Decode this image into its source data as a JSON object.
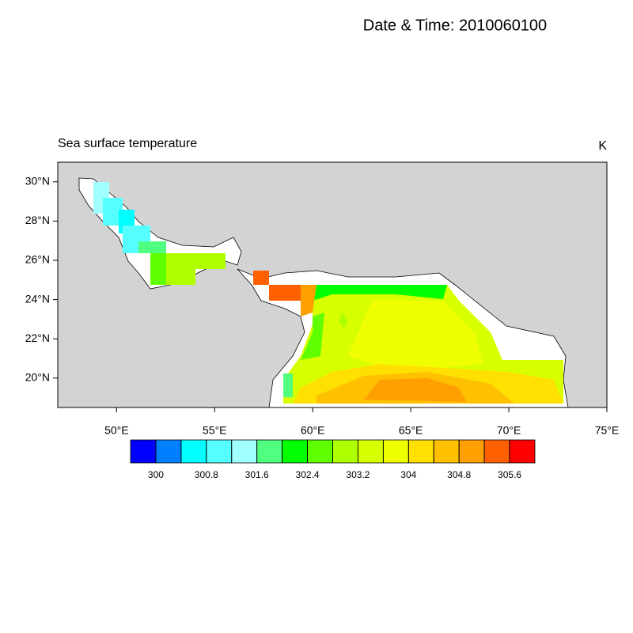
{
  "title": "Date & Time: 2010060100",
  "map": {
    "left_string": "Sea surface temperature",
    "right_string": "K",
    "xlim": [
      47,
      75
    ],
    "ylim": [
      18.5,
      31
    ],
    "xticks": [
      {
        "value": 50,
        "label": "50°E"
      },
      {
        "value": 55,
        "label": "55°E"
      },
      {
        "value": 60,
        "label": "60°E"
      },
      {
        "value": 65,
        "label": "65°E"
      },
      {
        "value": 70,
        "label": "70°E"
      },
      {
        "value": 75,
        "label": "75°E"
      }
    ],
    "yticks": [
      {
        "value": 20,
        "label": "20°N"
      },
      {
        "value": 22,
        "label": "22°N"
      },
      {
        "value": 24,
        "label": "24°N"
      },
      {
        "value": 26,
        "label": "26°N"
      },
      {
        "value": 28,
        "label": "28°N"
      },
      {
        "value": 30,
        "label": "30°N"
      }
    ],
    "land_color": "#d3d3d3"
  },
  "colorbar": {
    "levels": [
      300,
      300.4,
      300.8,
      301.2,
      301.6,
      302,
      302.4,
      302.8,
      303.2,
      303.6,
      304,
      304.4,
      304.8,
      305.2,
      305.6
    ],
    "label_stride": 2,
    "colors": [
      "#0000ff",
      "#0080ff",
      "#00ffff",
      "#55ffff",
      "#a0ffff",
      "#50ff80",
      "#00ff00",
      "#60ff00",
      "#b0ff00",
      "#d8ff00",
      "#f0ff00",
      "#ffe000",
      "#ffc000",
      "#ffa000",
      "#ff6000",
      "#ff0000"
    ]
  }
}
